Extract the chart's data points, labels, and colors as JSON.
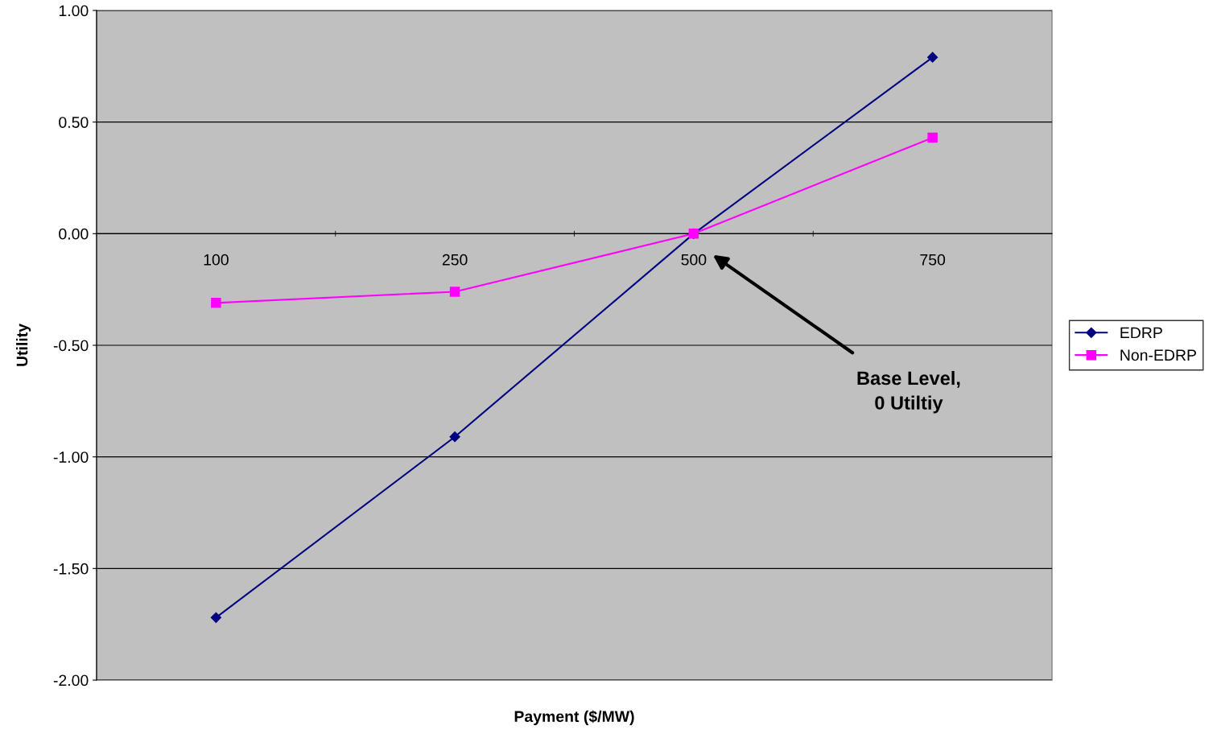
{
  "chart_data": {
    "type": "line",
    "xlabel": "Payment ($/MW)",
    "ylabel": "Utility",
    "categories": [
      "100",
      "250",
      "500",
      "750"
    ],
    "series": [
      {
        "name": "EDRP",
        "color": "#000080",
        "values": [
          -1.72,
          -0.91,
          0,
          0.79
        ],
        "marker": "diamond"
      },
      {
        "name": "Non-EDRP",
        "color": "#ff00ff",
        "values": [
          -0.31,
          -0.26,
          0,
          0.43
        ],
        "marker": "square"
      }
    ],
    "ylim": [
      -2,
      1
    ],
    "yticks": [
      {
        "value": -2,
        "label": "-2.00"
      },
      {
        "value": -1.5,
        "label": "-1.50"
      },
      {
        "value": -1,
        "label": "-1.00"
      },
      {
        "value": -0.5,
        "label": "-0.50"
      },
      {
        "value": 0,
        "label": "0.00"
      },
      {
        "value": 0.5,
        "label": "0.50"
      },
      {
        "value": 1,
        "label": "1.00"
      }
    ],
    "grid": "y",
    "legend": "right",
    "line_style": "solid",
    "annotations": [
      "Base Level,\n0 Utiltiy"
    ]
  }
}
